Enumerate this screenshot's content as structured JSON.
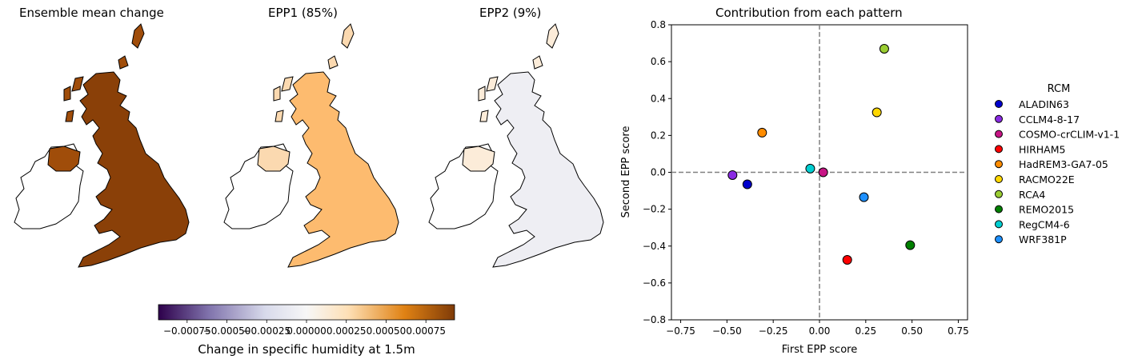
{
  "panels": [
    {
      "title": "Ensemble mean change",
      "shade": "#a04d0a",
      "land_shade": "#8a4008"
    },
    {
      "title": "EPP1 (85%)",
      "shade": "#fbd9b0",
      "land_shade": "#fdbb6f"
    },
    {
      "title": "EPP2 (9%)",
      "shade": "#fcecd9",
      "land_shade": "#eeeef3"
    }
  ],
  "colorbar": {
    "label": "Change in specific humidity at 1.5m",
    "ticks": [
      "−0.00075",
      "−0.00050",
      "−0.00025",
      "0.00000",
      "0.00025",
      "0.00050",
      "0.00075"
    ],
    "tick_values": [
      -0.00075,
      -0.0005,
      -0.00025,
      0,
      0.00025,
      0.0005,
      0.00075
    ],
    "range": [
      -0.00093,
      0.00093
    ],
    "colormap": [
      "#2d004b",
      "#8073ac",
      "#d8daeb",
      "#f7f7f7",
      "#fee0b6",
      "#e08214",
      "#7f3b08"
    ]
  },
  "chart_data": {
    "type": "scatter",
    "title": "Contribution from each pattern",
    "xlabel": "First EPP score",
    "ylabel": "Second EPP score",
    "xlim": [
      -0.8,
      0.8
    ],
    "ylim": [
      -0.8,
      0.8
    ],
    "xticks": [
      "−0.75",
      "−0.50",
      "−0.25",
      "0.00",
      "0.25",
      "0.50",
      "0.75"
    ],
    "xtick_values": [
      -0.75,
      -0.5,
      -0.25,
      0,
      0.25,
      0.5,
      0.75
    ],
    "yticks": [
      "−0.8",
      "−0.6",
      "−0.4",
      "−0.2",
      "0.0",
      "0.2",
      "0.4",
      "0.6",
      "0.8"
    ],
    "ytick_values": [
      -0.8,
      -0.6,
      -0.4,
      -0.2,
      0,
      0.2,
      0.4,
      0.6,
      0.8
    ],
    "grid": false,
    "reference_lines": {
      "x": 0,
      "y": 0,
      "style": "dashed",
      "color": "#808080"
    },
    "legend": {
      "title": "RCM",
      "placement": "outside-right"
    },
    "series": [
      {
        "name": "ALADIN63",
        "color": "#0000cd",
        "x": -0.39,
        "y": -0.065
      },
      {
        "name": "CCLM4-8-17",
        "color": "#8a2be2",
        "x": -0.47,
        "y": -0.015
      },
      {
        "name": "COSMO-crCLIM-v1-1",
        "color": "#c71585",
        "x": 0.02,
        "y": 0.0
      },
      {
        "name": "HIRHAM5",
        "color": "#ff0000",
        "x": 0.15,
        "y": -0.475
      },
      {
        "name": "HadREM3-GA7-05",
        "color": "#ff8c00",
        "x": -0.31,
        "y": 0.215
      },
      {
        "name": "RACMO22E",
        "color": "#ffd700",
        "x": 0.31,
        "y": 0.325
      },
      {
        "name": "RCA4",
        "color": "#9acd32",
        "x": 0.35,
        "y": 0.67
      },
      {
        "name": "REMO2015",
        "color": "#008000",
        "x": 0.49,
        "y": -0.395
      },
      {
        "name": "RegCM4-6",
        "color": "#00ced1",
        "x": -0.05,
        "y": 0.02
      },
      {
        "name": "WRF381P",
        "color": "#1e90ff",
        "x": 0.24,
        "y": -0.135
      }
    ]
  }
}
